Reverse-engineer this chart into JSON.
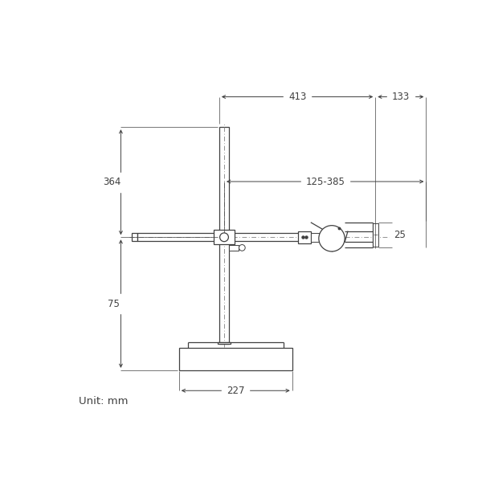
{
  "bg_color": "#ffffff",
  "line_color": "#404040",
  "dash_color": "#808080",
  "dim_color": "#404040",
  "unit_text": "Unit: mm",
  "dimensions": {
    "top_413": "413",
    "top_133": "133",
    "left_364": "364",
    "left_75": "75",
    "bottom_227": "227",
    "right_25": "25",
    "mid_125_385": "125-385"
  }
}
